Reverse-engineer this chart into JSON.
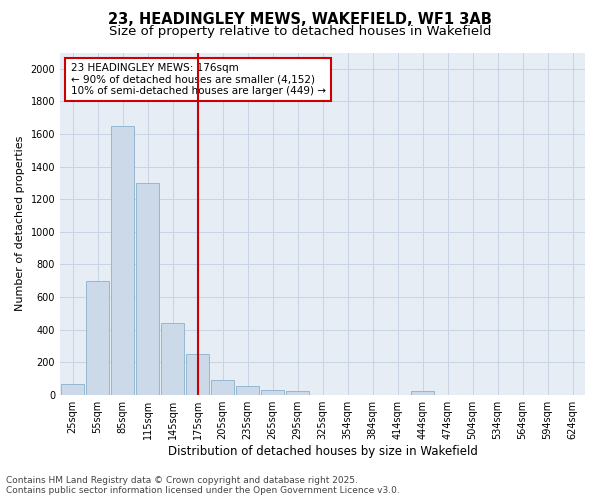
{
  "title_line1": "23, HEADINGLEY MEWS, WAKEFIELD, WF1 3AB",
  "title_line2": "Size of property relative to detached houses in Wakefield",
  "xlabel": "Distribution of detached houses by size in Wakefield",
  "ylabel": "Number of detached properties",
  "categories": [
    "25sqm",
    "55sqm",
    "85sqm",
    "115sqm",
    "145sqm",
    "175sqm",
    "205sqm",
    "235sqm",
    "265sqm",
    "295sqm",
    "325sqm",
    "354sqm",
    "384sqm",
    "414sqm",
    "444sqm",
    "474sqm",
    "504sqm",
    "534sqm",
    "564sqm",
    "594sqm",
    "624sqm"
  ],
  "values": [
    65,
    700,
    1650,
    1300,
    440,
    250,
    90,
    55,
    30,
    20,
    0,
    0,
    0,
    0,
    20,
    0,
    0,
    0,
    0,
    0,
    0
  ],
  "bar_color": "#ccd9e8",
  "bar_edge_color": "#8ab0cc",
  "grid_color": "#c8d4e4",
  "background_color": "#e6edf5",
  "annotation_text_line1": "23 HEADINGLEY MEWS: 176sqm",
  "annotation_text_line2": "← 90% of detached houses are smaller (4,152)",
  "annotation_text_line3": "10% of semi-detached houses are larger (449) →",
  "vline_index": 5,
  "vline_color": "#cc0000",
  "ylim": [
    0,
    2100
  ],
  "yticks": [
    0,
    200,
    400,
    600,
    800,
    1000,
    1200,
    1400,
    1600,
    1800,
    2000
  ],
  "footnote": "Contains HM Land Registry data © Crown copyright and database right 2025.\nContains public sector information licensed under the Open Government Licence v3.0.",
  "title_fontsize": 10.5,
  "subtitle_fontsize": 9.5,
  "ylabel_fontsize": 8,
  "xlabel_fontsize": 8.5,
  "tick_fontsize": 7,
  "annotation_fontsize": 7.5,
  "footnote_fontsize": 6.5
}
